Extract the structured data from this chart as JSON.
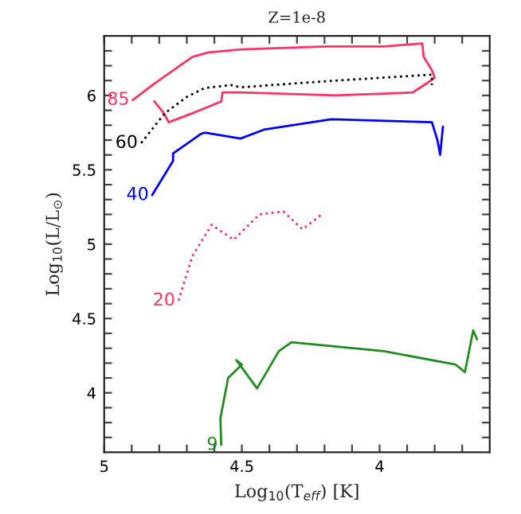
{
  "chart_data": {
    "type": "line",
    "title": "Z=1e-8",
    "xlabel": "Log$_{10}$(T$_{eff}$) [K]",
    "ylabel": "Log$_{10}$(L/L$_{⊙}$)",
    "xlim": [
      5,
      3.6
    ],
    "ylim": [
      3.6,
      6.4
    ],
    "xticks": [
      5,
      {
        "value": 4.9,
        "label": null
      },
      {
        "value": 4.8,
        "label": null
      },
      {
        "value": 4.7,
        "label": null
      },
      {
        "value": 4.6,
        "label": null
      },
      4.5,
      {
        "value": 4.4,
        "label": null
      },
      {
        "value": 4.3,
        "label": null
      },
      {
        "value": 4.2,
        "label": null
      },
      {
        "value": 4.1,
        "label": null
      },
      4,
      {
        "value": 3.9,
        "label": null
      },
      {
        "value": 3.8,
        "label": null
      },
      {
        "value": 3.7,
        "label": null
      }
    ],
    "yticks": [
      {
        "value": 3.7,
        "label": null
      },
      {
        "value": 3.8,
        "label": null
      },
      {
        "value": 3.9,
        "label": null
      },
      4,
      {
        "value": 4.1,
        "label": null
      },
      {
        "value": 4.2,
        "label": null
      },
      {
        "value": 4.3,
        "label": null
      },
      {
        "value": 4.4,
        "label": null
      },
      4.5,
      {
        "value": 4.6,
        "label": null
      },
      {
        "value": 4.7,
        "label": null
      },
      {
        "value": 4.8,
        "label": null
      },
      {
        "value": 4.9,
        "label": null
      },
      5,
      {
        "value": 5.1,
        "label": null
      },
      {
        "value": 5.2,
        "label": null
      },
      {
        "value": 5.3,
        "label": null
      },
      {
        "value": 5.4,
        "label": null
      },
      5.5,
      {
        "value": 5.6,
        "label": null
      },
      {
        "value": 5.7,
        "label": null
      },
      {
        "value": 5.8,
        "label": null
      },
      {
        "value": 5.9,
        "label": null
      },
      6,
      {
        "value": 6.1,
        "label": null
      },
      {
        "value": 6.2,
        "label": null
      },
      {
        "value": 6.3,
        "label": null
      }
    ],
    "grid": false,
    "legend": false,
    "series": [
      {
        "name": "85",
        "color": "#ff3366",
        "line_style": "solid",
        "x": [
          4.896,
          4.818,
          4.679,
          4.62,
          4.505,
          4.193,
          3.984,
          3.845,
          3.84,
          3.81,
          3.8,
          3.83,
          3.88,
          4.16,
          4.505,
          4.57,
          4.575,
          4.68,
          4.766,
          4.783,
          4.818
        ],
        "values": [
          5.97,
          6.08,
          6.26,
          6.29,
          6.31,
          6.33,
          6.33,
          6.35,
          6.26,
          6.17,
          6.12,
          6.08,
          6.02,
          6.0,
          6.02,
          6.02,
          5.96,
          5.88,
          5.82,
          5.88,
          5.96
        ]
      },
      {
        "name": "60",
        "color": "#000000",
        "line_style": "dotted",
        "x": [
          4.866,
          4.78,
          4.7,
          4.635,
          4.54,
          4.505,
          4.16,
          3.81,
          3.81
        ],
        "values": [
          5.68,
          5.88,
          5.99,
          6.05,
          6.07,
          6.055,
          6.1,
          6.14,
          6.07
        ]
      },
      {
        "name": "40",
        "color": "#0000ff",
        "line_style": "solid",
        "x": [
          4.826,
          4.75,
          4.75,
          4.65,
          4.635,
          4.505,
          4.42,
          4.175,
          3.81,
          3.79,
          3.78,
          3.77
        ],
        "values": [
          5.33,
          5.56,
          5.61,
          5.74,
          5.75,
          5.71,
          5.77,
          5.84,
          5.82,
          5.7,
          5.6,
          5.79
        ]
      },
      {
        "name": "20",
        "color": "#ff3366",
        "line_style": "dotted",
        "x": [
          4.73,
          4.68,
          4.61,
          4.53,
          4.436,
          4.35,
          4.28,
          4.21
        ],
        "values": [
          4.62,
          4.92,
          5.13,
          5.03,
          5.2,
          5.22,
          5.1,
          5.2
        ]
      },
      {
        "name": "9",
        "color": "#228b22",
        "line_style": "solid",
        "x": [
          4.575,
          4.578,
          4.55,
          4.5,
          4.52,
          4.445,
          4.366,
          4.32,
          3.984,
          3.724,
          3.69,
          3.66,
          3.646
        ],
        "values": [
          3.65,
          3.83,
          4.1,
          4.19,
          4.22,
          4.03,
          4.28,
          4.34,
          4.28,
          4.19,
          4.14,
          4.42,
          4.36
        ]
      }
    ]
  }
}
